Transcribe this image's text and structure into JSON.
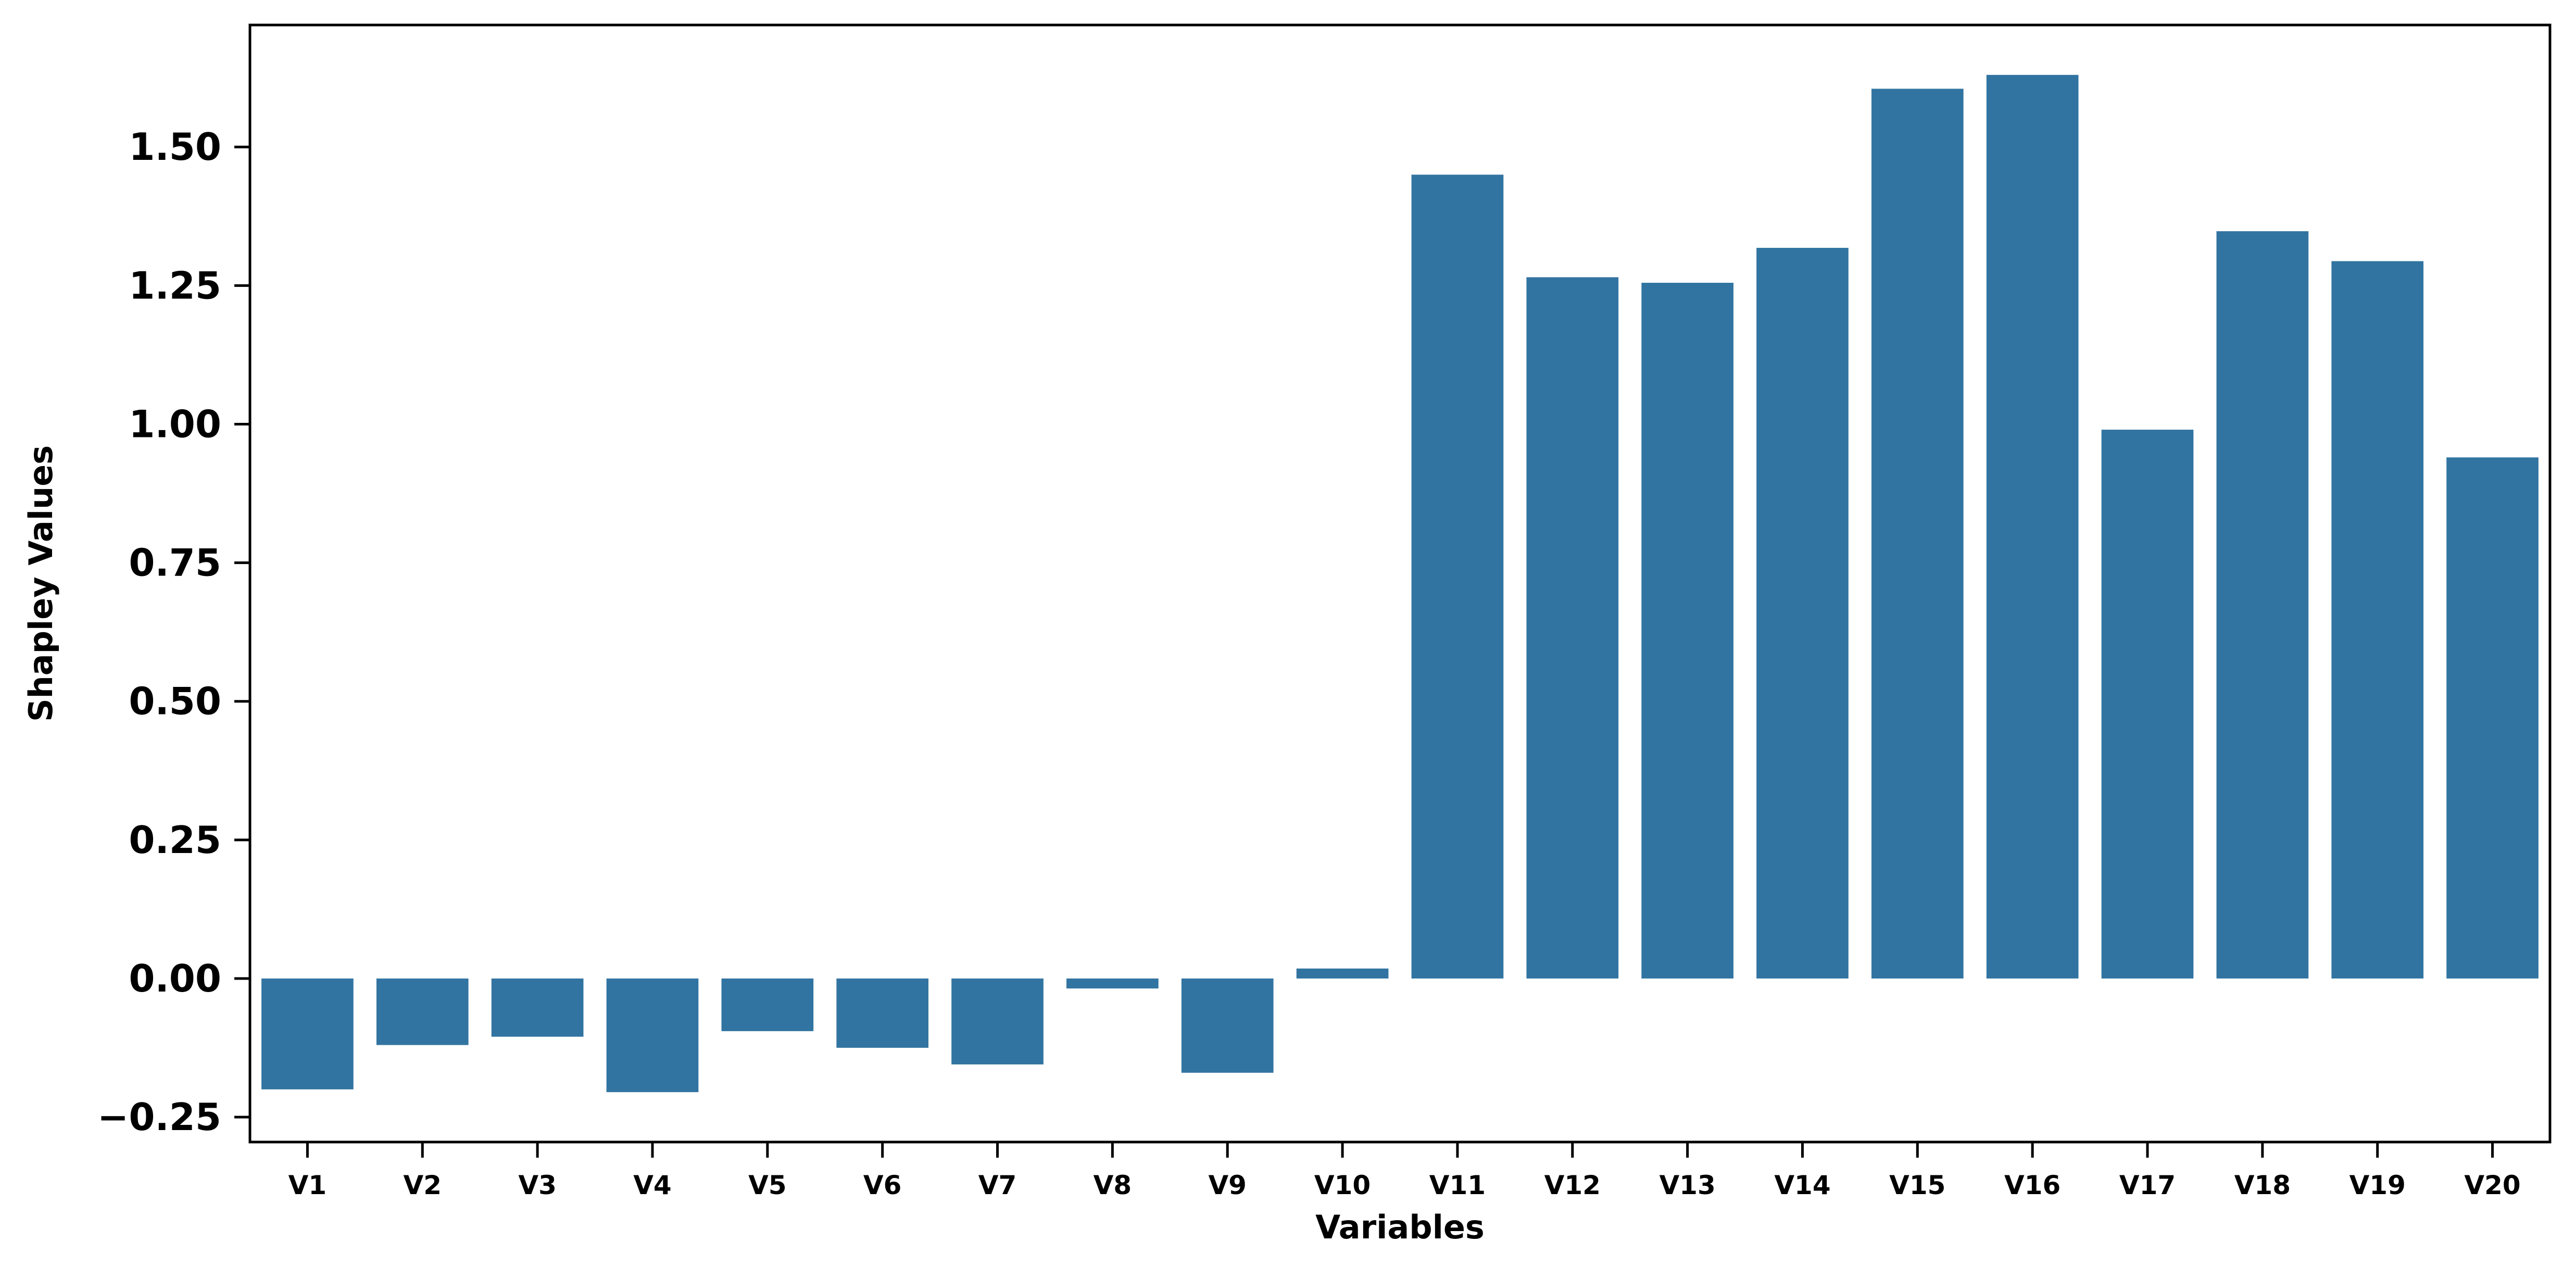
{
  "chart_data": {
    "type": "bar",
    "title": "",
    "xlabel": "Variables",
    "ylabel": "Shapley Values",
    "categories": [
      "V1",
      "V2",
      "V3",
      "V4",
      "V5",
      "V6",
      "V7",
      "V8",
      "V9",
      "V10",
      "V11",
      "V12",
      "V13",
      "V14",
      "V15",
      "V16",
      "V17",
      "V18",
      "V19",
      "V20"
    ],
    "values": [
      -0.2,
      -0.12,
      -0.105,
      -0.205,
      -0.095,
      -0.125,
      -0.155,
      -0.018,
      -0.17,
      0.018,
      1.45,
      1.265,
      1.255,
      1.318,
      1.605,
      1.63,
      0.99,
      1.348,
      1.294,
      0.94
    ],
    "ylim": [
      -0.295,
      1.72
    ],
    "yticks": [
      -0.25,
      0,
      0.25,
      0.5,
      0.75,
      1.0,
      1.25,
      1.5
    ],
    "ytick_labels": [
      "−0.25",
      "0.00",
      "0.25",
      "0.50",
      "0.75",
      "1.00",
      "1.25",
      "1.50"
    ],
    "bar_color": "#3274a1",
    "grid": false,
    "legend": "none"
  }
}
